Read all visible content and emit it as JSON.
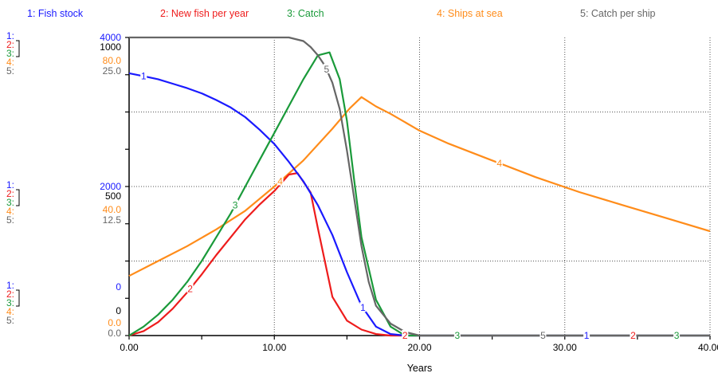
{
  "chart_data": {
    "type": "line",
    "xlabel": "Years",
    "xlim": [
      0,
      40
    ],
    "x_ticks": [
      "0.00",
      "10.00",
      "20.00",
      "30.00",
      "40.00"
    ],
    "colors": {
      "fish_stock": "#1a1aff",
      "new_fish": "#ee1c1c",
      "catch": "#1a9a3a",
      "ships": "#ff8c1a",
      "catch_per_ship": "#666666"
    },
    "axis_groups": [
      {
        "label": "top",
        "entries": [
          {
            "num": "1:",
            "value": "4000",
            "series": "fish_stock"
          },
          {
            "num": "2:",
            "value": "",
            "series": "new_fish"
          },
          {
            "num": "3:",
            "value": "1000",
            "series": "catch"
          },
          {
            "num": "4:",
            "value": "80.0",
            "series": "ships"
          },
          {
            "num": "5:",
            "value": "25.0",
            "series": "catch_per_ship"
          }
        ]
      },
      {
        "label": "mid",
        "entries": [
          {
            "num": "1:",
            "value": "2000",
            "series": "fish_stock"
          },
          {
            "num": "2:",
            "value": "",
            "series": "new_fish"
          },
          {
            "num": "3:",
            "value": "500",
            "series": "catch"
          },
          {
            "num": "4:",
            "value": "40.0",
            "series": "ships"
          },
          {
            "num": "5:",
            "value": "12.5",
            "series": "catch_per_ship"
          }
        ]
      },
      {
        "label": "bottom",
        "entries": [
          {
            "num": "1:",
            "value": "0",
            "series": "fish_stock"
          },
          {
            "num": "2:",
            "value": "",
            "series": "new_fish"
          },
          {
            "num": "3:",
            "value": "0",
            "series": "catch"
          },
          {
            "num": "4:",
            "value": "0.0",
            "series": "ships"
          },
          {
            "num": "5:",
            "value": "0.0",
            "series": "catch_per_ship"
          }
        ]
      }
    ],
    "series": [
      {
        "id": "fish_stock",
        "name": "1: Fish stock",
        "marker": "1",
        "ymax": 4000,
        "points": [
          [
            0,
            3520
          ],
          [
            1,
            3480
          ],
          [
            2,
            3440
          ],
          [
            3,
            3380
          ],
          [
            4,
            3320
          ],
          [
            5,
            3250
          ],
          [
            6,
            3160
          ],
          [
            7,
            3060
          ],
          [
            8,
            2930
          ],
          [
            9,
            2760
          ],
          [
            10,
            2570
          ],
          [
            11,
            2330
          ],
          [
            12,
            2070
          ],
          [
            13,
            1750
          ],
          [
            14,
            1350
          ],
          [
            15,
            850
          ],
          [
            16,
            400
          ],
          [
            17,
            120
          ],
          [
            18,
            20
          ],
          [
            19,
            0
          ],
          [
            40,
            0
          ]
        ],
        "marker_x": [
          1,
          16.1,
          31.5
        ]
      },
      {
        "id": "new_fish",
        "name": "2: New fish per year",
        "marker": "2",
        "ymax": 1000,
        "points": [
          [
            0,
            0
          ],
          [
            1,
            15
          ],
          [
            2,
            45
          ],
          [
            3,
            90
          ],
          [
            4,
            145
          ],
          [
            5,
            205
          ],
          [
            6,
            270
          ],
          [
            7,
            330
          ],
          [
            8,
            390
          ],
          [
            9,
            440
          ],
          [
            10,
            485
          ],
          [
            11,
            540
          ],
          [
            11.6,
            545
          ],
          [
            12.5,
            480
          ],
          [
            13,
            360
          ],
          [
            14,
            130
          ],
          [
            15,
            50
          ],
          [
            16,
            20
          ],
          [
            17,
            5
          ],
          [
            18,
            0
          ],
          [
            40,
            0
          ]
        ],
        "marker_x": [
          4.2,
          19.0,
          34.7
        ]
      },
      {
        "id": "catch",
        "name": "3: Catch",
        "marker": "3",
        "ymax": 1000,
        "points": [
          [
            0,
            0
          ],
          [
            1,
            30
          ],
          [
            2,
            70
          ],
          [
            3,
            120
          ],
          [
            4,
            180
          ],
          [
            5,
            250
          ],
          [
            6,
            330
          ],
          [
            7,
            410
          ],
          [
            8,
            500
          ],
          [
            9,
            590
          ],
          [
            10,
            680
          ],
          [
            11,
            770
          ],
          [
            12,
            860
          ],
          [
            13,
            940
          ],
          [
            13.8,
            950
          ],
          [
            14.5,
            860
          ],
          [
            15,
            720
          ],
          [
            15.5,
            520
          ],
          [
            16,
            330
          ],
          [
            17,
            120
          ],
          [
            18,
            30
          ],
          [
            19,
            0
          ],
          [
            40,
            0
          ]
        ],
        "marker_x": [
          7.3,
          22.6,
          37.7
        ]
      },
      {
        "id": "ships",
        "name": "4: Ships at sea",
        "marker": "4",
        "ymax": 80,
        "points": [
          [
            0,
            16
          ],
          [
            2,
            20
          ],
          [
            4,
            24
          ],
          [
            6,
            28.5
          ],
          [
            8,
            33.5
          ],
          [
            10,
            40
          ],
          [
            12,
            47
          ],
          [
            14,
            55.5
          ],
          [
            15.2,
            61
          ],
          [
            16,
            64
          ],
          [
            17,
            61.5
          ],
          [
            18,
            59.5
          ],
          [
            20,
            55
          ],
          [
            22,
            51.5
          ],
          [
            25,
            47
          ],
          [
            28,
            42.5
          ],
          [
            31,
            38.5
          ],
          [
            34,
            35
          ],
          [
            37,
            31.5
          ],
          [
            40,
            28
          ]
        ],
        "marker_x": [
          10.4,
          25.5
        ]
      },
      {
        "id": "catch_per_ship",
        "name": "5: Catch  per ship",
        "marker": "5",
        "ymax": 25,
        "points": [
          [
            0,
            25
          ],
          [
            11,
            25
          ],
          [
            12,
            24.7
          ],
          [
            12.5,
            24.2
          ],
          [
            13,
            23.5
          ],
          [
            13.5,
            22.6
          ],
          [
            14,
            21.2
          ],
          [
            14.5,
            19
          ],
          [
            15,
            15.5
          ],
          [
            15.5,
            11.5
          ],
          [
            16,
            7.5
          ],
          [
            16.5,
            4.5
          ],
          [
            17,
            2.5
          ],
          [
            18,
            1
          ],
          [
            19,
            0.3
          ],
          [
            20,
            0
          ],
          [
            40,
            0
          ]
        ],
        "marker_x": [
          13.6,
          28.5
        ]
      }
    ]
  }
}
